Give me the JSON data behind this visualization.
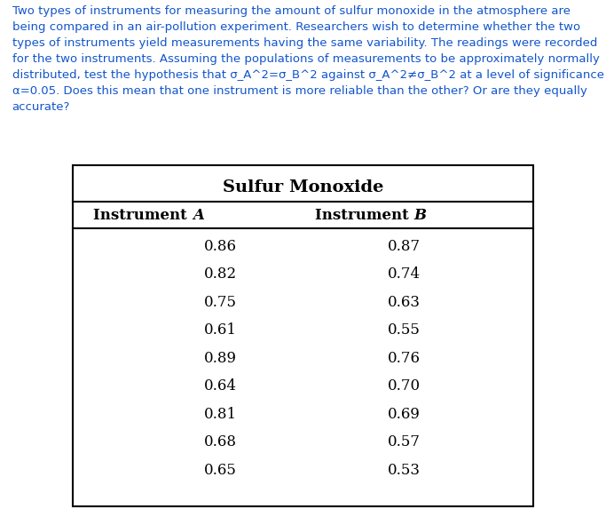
{
  "paragraph_text": "Two types of instruments for measuring the amount of sulfur monoxide in the atmosphere are being compared in an air-pollution experiment. Researchers wish to determine whether the two types of instruments yield measurements having the same variability. The readings were recorded for the two instruments. Assuming the populations of measurements to be approximately normally distributed, test the hypothesis that σ_A^2=σ_B^2 against σ_A^2≠σ_B^2 at a level of significance α=0.05. Does this mean that one instrument is more reliable than the other? Or are they equally accurate?",
  "table_title": "Sulfur Monoxide",
  "col1_header": "Instrument A",
  "col2_header": "Instrument B",
  "instrument_A": [
    0.86,
    0.82,
    0.75,
    0.61,
    0.89,
    0.64,
    0.81,
    0.68,
    0.65
  ],
  "instrument_B": [
    0.87,
    0.74,
    0.63,
    0.55,
    0.76,
    0.7,
    0.69,
    0.57,
    0.53
  ],
  "bg_color": "#ffffff",
  "text_color": "#1155cc",
  "table_text_color": "#000000",
  "paragraph_fontsize": 9.5,
  "table_title_fontsize": 14,
  "header_fontsize": 12,
  "data_fontsize": 12
}
